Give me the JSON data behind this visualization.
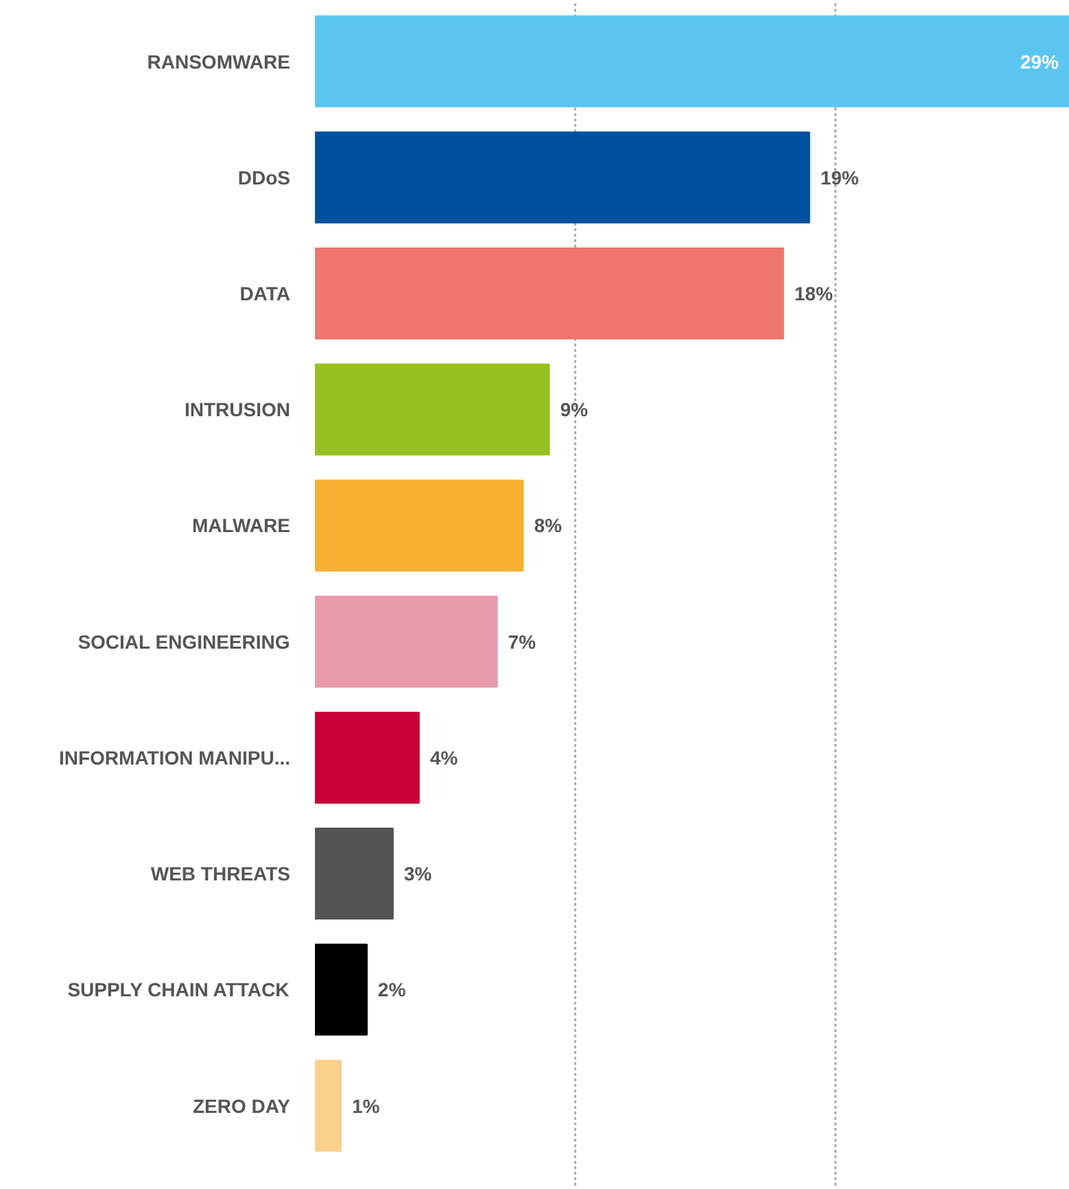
{
  "chart_data": {
    "type": "bar",
    "orientation": "horizontal",
    "categories": [
      "RANSOMWARE",
      "DDoS",
      "DATA",
      "INTRUSION",
      "MALWARE",
      "SOCIAL ENGINEERING",
      "INFORMATION MANIPU...",
      "WEB THREATS",
      "SUPPLY CHAIN ATTACK",
      "ZERO DAY"
    ],
    "values": [
      29,
      19,
      18,
      9,
      8,
      7,
      4,
      3,
      2,
      1
    ],
    "value_labels": [
      "29%",
      "19%",
      "18%",
      "9%",
      "8%",
      "7%",
      "4%",
      "3%",
      "2%",
      "1%"
    ],
    "colors": [
      "#5bc5f2",
      "#0050a0",
      "#ee766e",
      "#97c11f",
      "#f7b032",
      "#e899ad",
      "#c8003a",
      "#555555",
      "#000000",
      "#fad08a"
    ],
    "xlim": [
      0,
      29
    ],
    "ref_lines": [
      {
        "axis": "x",
        "value": 10,
        "color": "#aaaaaa",
        "line_style": "dotted"
      },
      {
        "axis": "x",
        "value": 20,
        "color": "#aaaaaa",
        "line_style": "dotted"
      }
    ],
    "tick_labels": "y"
  }
}
